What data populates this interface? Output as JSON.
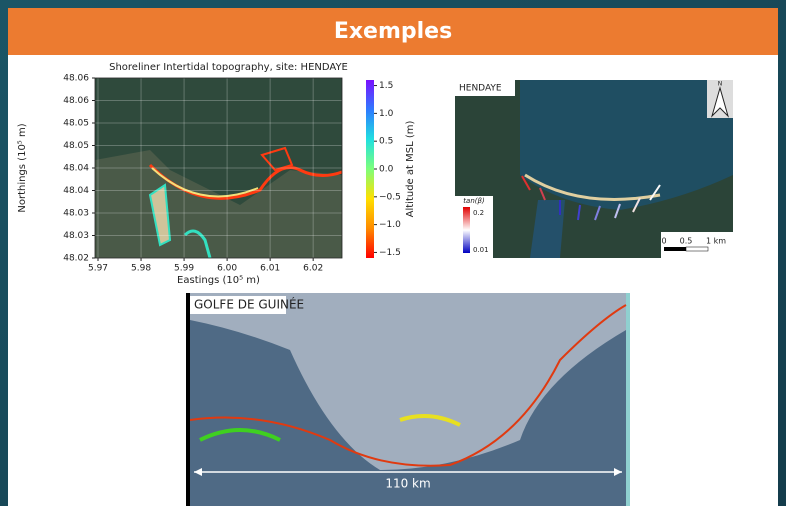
{
  "header": {
    "title": "Exemples"
  },
  "chart_data": {
    "type": "map",
    "title": "Shoreliner Intertidal topography, site: HENDAYE",
    "x_label": "Eastings (10⁵ m)",
    "y_label": "Northings (10⁵ m)",
    "xlim": [
      5.9693,
      6.0267
    ],
    "ylim": [
      48.02,
      48.06
    ],
    "xticks": [
      5.97,
      5.98,
      5.99,
      {
        "value": 6,
        "label": "6.00"
      },
      6.01,
      6.02
    ],
    "yticks": [
      {
        "value": 48.02,
        "label": "48.02"
      },
      {
        "value": 48.025,
        "label": "48.03"
      },
      {
        "value": 48.03,
        "label": "48.03"
      },
      {
        "value": 48.035,
        "label": "48.04"
      },
      {
        "value": 48.04,
        "label": "48.04"
      },
      {
        "value": 48.045,
        "label": "48.05"
      },
      {
        "value": 48.05,
        "label": "48.05"
      },
      {
        "value": 48.055,
        "label": "48.06"
      },
      {
        "value": 48.06,
        "label": "48.06"
      }
    ],
    "grid": true,
    "colorbar": {
      "label": "Altitude at MSL (m)",
      "lim": [
        -1.6,
        1.6
      ],
      "ticks": [
        {
          "value": -1.5,
          "label": "−1.5"
        },
        {
          "value": -1,
          "label": "−1.0"
        },
        {
          "value": -0.5,
          "label": "−0.5"
        },
        {
          "value": 0,
          "label": "0.0"
        },
        {
          "value": 0.5,
          "label": "0.5"
        },
        {
          "value": 1,
          "label": "1.0"
        },
        1.5
      ],
      "colors": [
        "#ff0000",
        "#ff8c00",
        "#ffe000",
        "#7dff7a",
        "#20e0e0",
        "#2e7bff",
        "#7a10ff"
      ]
    }
  },
  "hendaye": {
    "label": "HENDAYE",
    "north": "N",
    "legend_title": "tan(β)",
    "legend_high": "0.2",
    "legend_low": "0.01",
    "scale": [
      "0",
      "0.5",
      "1 km"
    ]
  },
  "golfe": {
    "label": "GOLFE DE GUINÉE",
    "distance": "110 km"
  }
}
